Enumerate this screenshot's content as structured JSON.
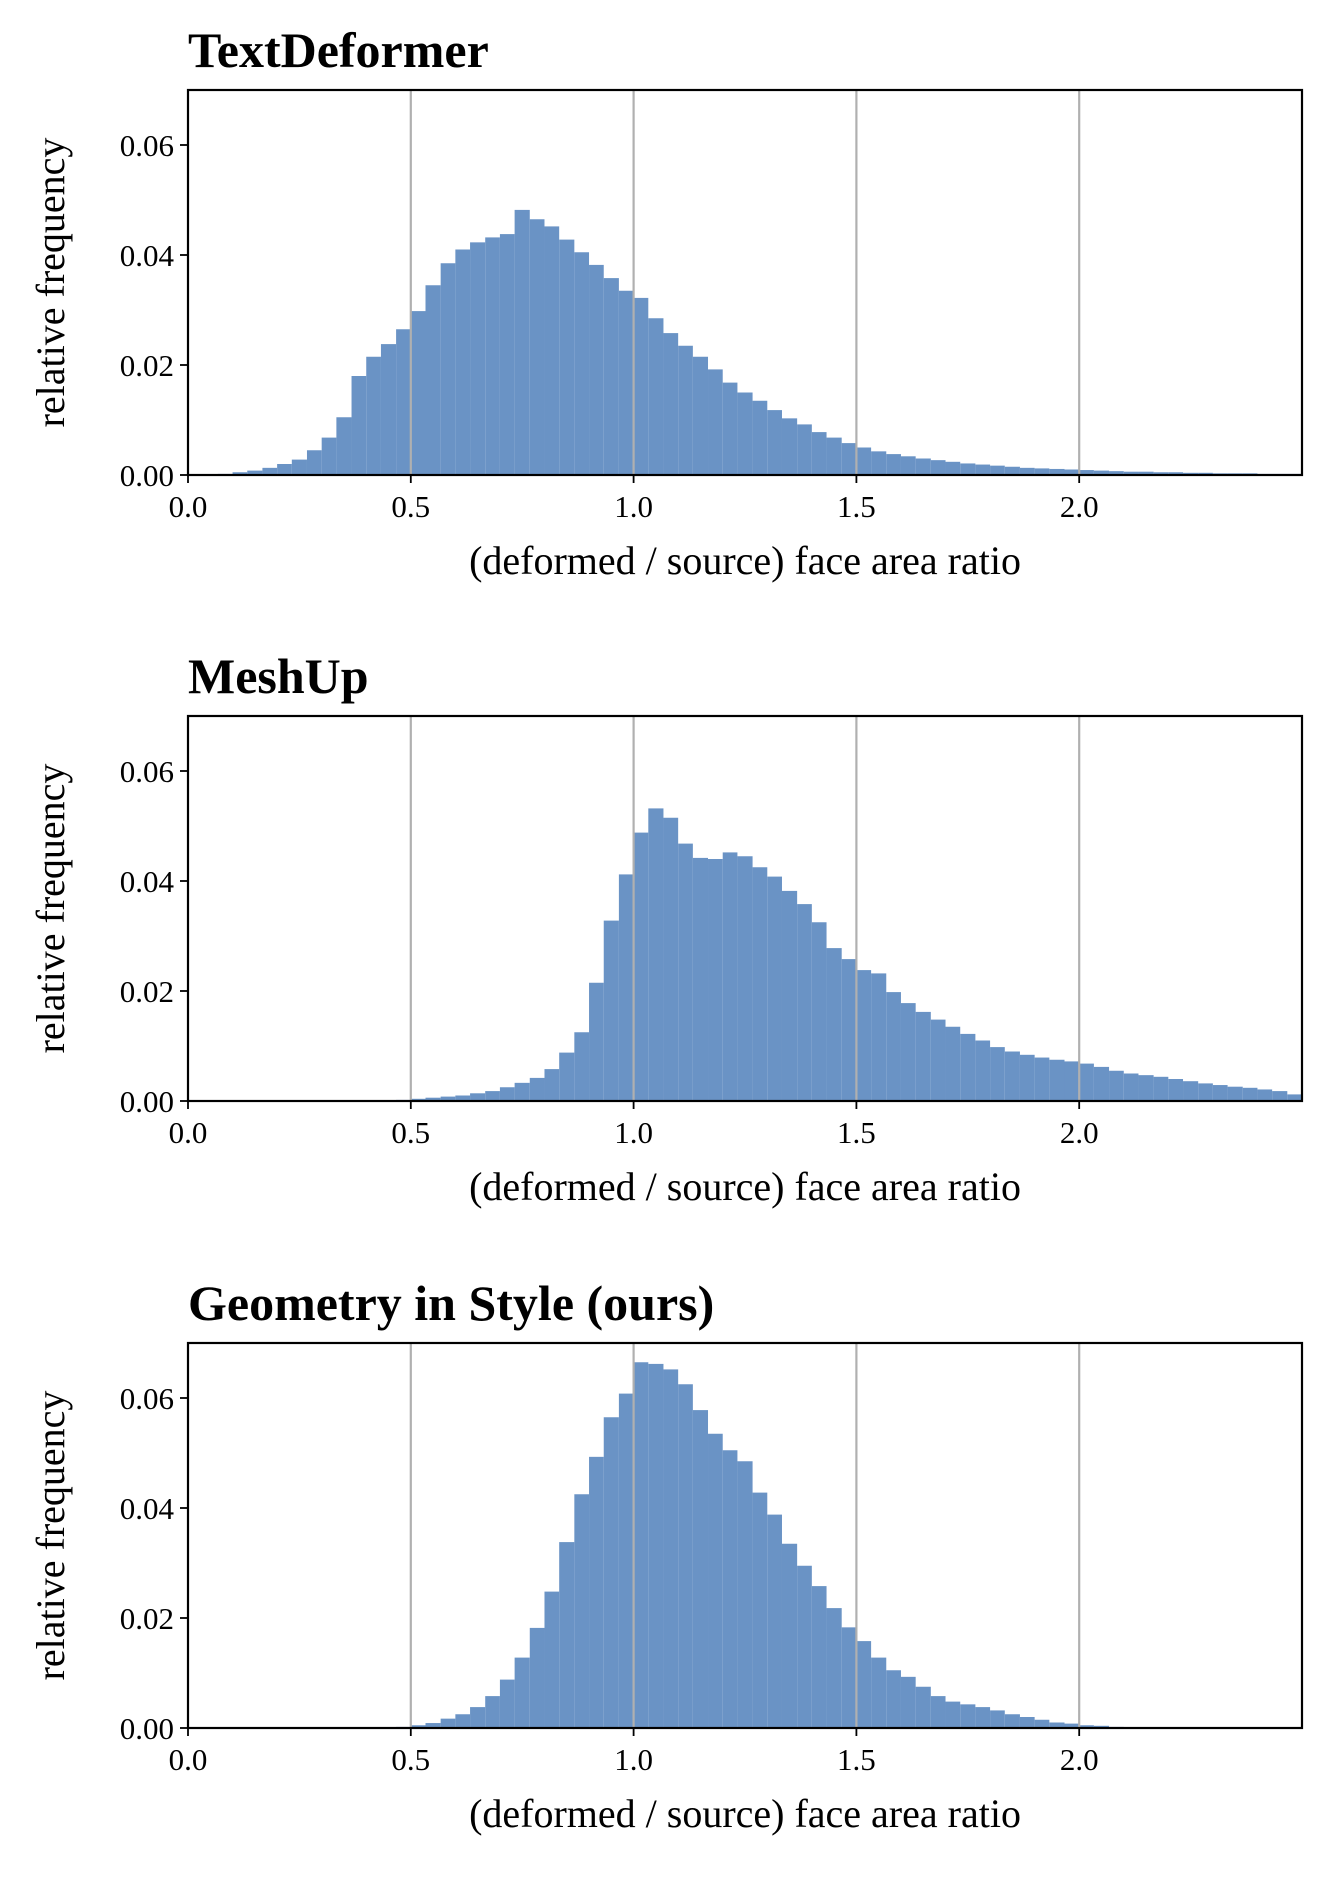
{
  "chart_data": [
    {
      "type": "histogram",
      "title": "TextDeformer",
      "xlabel": "(deformed / source) face area ratio",
      "ylabel": "relative frequency",
      "color": "#6a93c5",
      "grid": "x",
      "xlim": [
        0,
        2.5
      ],
      "ylim": [
        0,
        0.07
      ],
      "xticks": [
        {
          "value": 0,
          "label": "0.0"
        },
        0.5,
        {
          "value": 1,
          "label": "1.0"
        },
        1.5,
        {
          "value": 2,
          "label": "2.0"
        }
      ],
      "yticks": [
        {
          "value": 0,
          "label": "0.00"
        },
        0.02,
        0.04,
        0.06
      ],
      "bins": [
        0,
        0.033,
        0.067,
        0.1,
        0.133,
        0.167,
        0.2,
        0.233,
        0.267,
        0.3,
        0.333,
        0.367,
        0.4,
        0.433,
        0.467,
        0.5,
        0.533,
        0.567,
        0.6,
        0.633,
        0.667,
        0.7,
        0.733,
        0.767,
        0.8,
        0.833,
        0.867,
        0.9,
        0.933,
        0.967,
        1,
        1.033,
        1.067,
        1.1,
        1.133,
        1.167,
        1.2,
        1.233,
        1.267,
        1.3,
        1.333,
        1.367,
        1.4,
        1.433,
        1.467,
        1.5,
        1.533,
        1.567,
        1.6,
        1.633,
        1.667,
        1.7,
        1.733,
        1.767,
        1.8,
        1.833,
        1.867,
        1.9,
        1.933,
        1.967,
        2,
        2.033,
        2.067,
        2.1,
        2.133,
        2.167,
        2.2,
        2.233,
        2.267,
        2.3,
        2.333,
        2.367,
        2.4,
        2.433,
        2.467,
        2.5
      ],
      "values": [
        0,
        0,
        0.0002,
        0.0005,
        0.0008,
        0.0013,
        0.002,
        0.0028,
        0.0045,
        0.0068,
        0.0105,
        0.018,
        0.0215,
        0.0238,
        0.0265,
        0.0298,
        0.0345,
        0.0385,
        0.041,
        0.0423,
        0.0432,
        0.0438,
        0.0482,
        0.0465,
        0.0452,
        0.0428,
        0.0405,
        0.0382,
        0.0358,
        0.0335,
        0.0322,
        0.0285,
        0.0258,
        0.0235,
        0.0215,
        0.0192,
        0.0168,
        0.015,
        0.0135,
        0.0118,
        0.0103,
        0.0092,
        0.0078,
        0.0068,
        0.0058,
        0.005,
        0.0043,
        0.0038,
        0.0034,
        0.003,
        0.0027,
        0.0024,
        0.0021,
        0.0019,
        0.0017,
        0.0015,
        0.0013,
        0.0012,
        0.0011,
        0.001,
        0.0009,
        0.0008,
        0.0007,
        0.0006,
        0.0006,
        0.0005,
        0.0005,
        0.0004,
        0.0004,
        0.0003,
        0.0003,
        0.0003,
        0.0002,
        0.0002,
        0.0002
      ]
    },
    {
      "type": "histogram",
      "title": "MeshUp",
      "xlabel": "(deformed / source) face area ratio",
      "ylabel": "relative frequency",
      "color": "#6a93c5",
      "grid": "x",
      "xlim": [
        0,
        2.5
      ],
      "ylim": [
        0,
        0.07
      ],
      "xticks": [
        {
          "value": 0,
          "label": "0.0"
        },
        0.5,
        {
          "value": 1,
          "label": "1.0"
        },
        1.5,
        {
          "value": 2,
          "label": "2.0"
        }
      ],
      "yticks": [
        {
          "value": 0,
          "label": "0.00"
        },
        0.02,
        0.04,
        0.06
      ],
      "bins": [
        0,
        0.033,
        0.067,
        0.1,
        0.133,
        0.167,
        0.2,
        0.233,
        0.267,
        0.3,
        0.333,
        0.367,
        0.4,
        0.433,
        0.467,
        0.5,
        0.533,
        0.567,
        0.6,
        0.633,
        0.667,
        0.7,
        0.733,
        0.767,
        0.8,
        0.833,
        0.867,
        0.9,
        0.933,
        0.967,
        1,
        1.033,
        1.067,
        1.1,
        1.133,
        1.167,
        1.2,
        1.233,
        1.267,
        1.3,
        1.333,
        1.367,
        1.4,
        1.433,
        1.467,
        1.5,
        1.533,
        1.567,
        1.6,
        1.633,
        1.667,
        1.7,
        1.733,
        1.767,
        1.8,
        1.833,
        1.867,
        1.9,
        1.933,
        1.967,
        2,
        2.033,
        2.067,
        2.1,
        2.133,
        2.167,
        2.2,
        2.233,
        2.267,
        2.3,
        2.333,
        2.367,
        2.4,
        2.433,
        2.467,
        2.5
      ],
      "values": [
        0,
        0,
        0,
        0,
        0,
        0,
        0,
        0,
        0,
        0,
        0,
        0,
        0,
        0.0001,
        0.0002,
        0.0004,
        0.0006,
        0.0008,
        0.001,
        0.0014,
        0.0018,
        0.0025,
        0.0033,
        0.0042,
        0.0058,
        0.0088,
        0.0125,
        0.0215,
        0.0328,
        0.0412,
        0.0488,
        0.0532,
        0.0515,
        0.0468,
        0.0442,
        0.044,
        0.0452,
        0.0445,
        0.0425,
        0.0408,
        0.0382,
        0.0358,
        0.0325,
        0.0278,
        0.0258,
        0.0238,
        0.0232,
        0.0198,
        0.0178,
        0.0162,
        0.0148,
        0.0135,
        0.0122,
        0.011,
        0.0098,
        0.009,
        0.0084,
        0.0079,
        0.0075,
        0.0072,
        0.0068,
        0.0062,
        0.0055,
        0.005,
        0.0047,
        0.0044,
        0.004,
        0.0036,
        0.0032,
        0.0029,
        0.0026,
        0.0024,
        0.0021,
        0.0018,
        0.0012
      ]
    },
    {
      "type": "histogram",
      "title": "Geometry in Style (ours)",
      "xlabel": "(deformed / source) face area ratio",
      "ylabel": "relative frequency",
      "color": "#6a93c5",
      "grid": "x",
      "xlim": [
        0,
        2.5
      ],
      "ylim": [
        0,
        0.07
      ],
      "xticks": [
        {
          "value": 0,
          "label": "0.0"
        },
        0.5,
        {
          "value": 1,
          "label": "1.0"
        },
        1.5,
        {
          "value": 2,
          "label": "2.0"
        }
      ],
      "yticks": [
        {
          "value": 0,
          "label": "0.00"
        },
        0.02,
        0.04,
        0.06
      ],
      "bins": [
        0,
        0.033,
        0.067,
        0.1,
        0.133,
        0.167,
        0.2,
        0.233,
        0.267,
        0.3,
        0.333,
        0.367,
        0.4,
        0.433,
        0.467,
        0.5,
        0.533,
        0.567,
        0.6,
        0.633,
        0.667,
        0.7,
        0.733,
        0.767,
        0.8,
        0.833,
        0.867,
        0.9,
        0.933,
        0.967,
        1,
        1.033,
        1.067,
        1.1,
        1.133,
        1.167,
        1.2,
        1.233,
        1.267,
        1.3,
        1.333,
        1.367,
        1.4,
        1.433,
        1.467,
        1.5,
        1.533,
        1.567,
        1.6,
        1.633,
        1.667,
        1.7,
        1.733,
        1.767,
        1.8,
        1.833,
        1.867,
        1.9,
        1.933,
        1.967,
        2,
        2.033,
        2.067,
        2.1,
        2.133,
        2.167,
        2.2,
        2.233,
        2.267,
        2.3,
        2.333,
        2.367,
        2.4,
        2.433,
        2.467,
        2.5
      ],
      "values": [
        0,
        0,
        0,
        0,
        0,
        0,
        0,
        0,
        0,
        0,
        0,
        0,
        0,
        0,
        0.0002,
        0.0005,
        0.0009,
        0.0017,
        0.0025,
        0.0038,
        0.0058,
        0.0088,
        0.0128,
        0.0182,
        0.0248,
        0.0338,
        0.0425,
        0.0493,
        0.0565,
        0.0608,
        0.0665,
        0.0662,
        0.0652,
        0.0625,
        0.0578,
        0.0535,
        0.0505,
        0.0485,
        0.0428,
        0.0388,
        0.0335,
        0.0295,
        0.0258,
        0.0218,
        0.0183,
        0.0158,
        0.0128,
        0.0105,
        0.0093,
        0.0075,
        0.0058,
        0.0048,
        0.0043,
        0.0038,
        0.0032,
        0.0025,
        0.002,
        0.0015,
        0.001,
        0.0008,
        0.0005,
        0.0004,
        0.0002,
        0.0001,
        0,
        0,
        0,
        0,
        0,
        0,
        0,
        0,
        0,
        0,
        0
      ]
    }
  ]
}
